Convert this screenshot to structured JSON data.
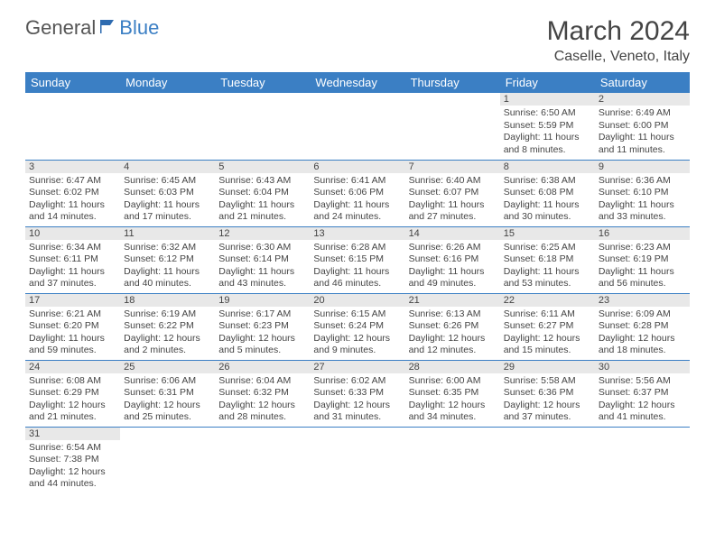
{
  "logo": {
    "general": "General",
    "blue": "Blue"
  },
  "title": "March 2024",
  "location": "Caselle, Veneto, Italy",
  "weekdays": [
    "Sunday",
    "Monday",
    "Tuesday",
    "Wednesday",
    "Thursday",
    "Friday",
    "Saturday"
  ],
  "colors": {
    "header_bg": "#3b7fc4",
    "header_fg": "#ffffff",
    "daynum_bg": "#e8e8e8",
    "row_border": "#3b7fc4",
    "text": "#444444"
  },
  "weeks": [
    [
      null,
      null,
      null,
      null,
      null,
      {
        "n": "1",
        "sr": "Sunrise: 6:50 AM",
        "ss": "Sunset: 5:59 PM",
        "d1": "Daylight: 11 hours",
        "d2": "and 8 minutes."
      },
      {
        "n": "2",
        "sr": "Sunrise: 6:49 AM",
        "ss": "Sunset: 6:00 PM",
        "d1": "Daylight: 11 hours",
        "d2": "and 11 minutes."
      }
    ],
    [
      {
        "n": "3",
        "sr": "Sunrise: 6:47 AM",
        "ss": "Sunset: 6:02 PM",
        "d1": "Daylight: 11 hours",
        "d2": "and 14 minutes."
      },
      {
        "n": "4",
        "sr": "Sunrise: 6:45 AM",
        "ss": "Sunset: 6:03 PM",
        "d1": "Daylight: 11 hours",
        "d2": "and 17 minutes."
      },
      {
        "n": "5",
        "sr": "Sunrise: 6:43 AM",
        "ss": "Sunset: 6:04 PM",
        "d1": "Daylight: 11 hours",
        "d2": "and 21 minutes."
      },
      {
        "n": "6",
        "sr": "Sunrise: 6:41 AM",
        "ss": "Sunset: 6:06 PM",
        "d1": "Daylight: 11 hours",
        "d2": "and 24 minutes."
      },
      {
        "n": "7",
        "sr": "Sunrise: 6:40 AM",
        "ss": "Sunset: 6:07 PM",
        "d1": "Daylight: 11 hours",
        "d2": "and 27 minutes."
      },
      {
        "n": "8",
        "sr": "Sunrise: 6:38 AM",
        "ss": "Sunset: 6:08 PM",
        "d1": "Daylight: 11 hours",
        "d2": "and 30 minutes."
      },
      {
        "n": "9",
        "sr": "Sunrise: 6:36 AM",
        "ss": "Sunset: 6:10 PM",
        "d1": "Daylight: 11 hours",
        "d2": "and 33 minutes."
      }
    ],
    [
      {
        "n": "10",
        "sr": "Sunrise: 6:34 AM",
        "ss": "Sunset: 6:11 PM",
        "d1": "Daylight: 11 hours",
        "d2": "and 37 minutes."
      },
      {
        "n": "11",
        "sr": "Sunrise: 6:32 AM",
        "ss": "Sunset: 6:12 PM",
        "d1": "Daylight: 11 hours",
        "d2": "and 40 minutes."
      },
      {
        "n": "12",
        "sr": "Sunrise: 6:30 AM",
        "ss": "Sunset: 6:14 PM",
        "d1": "Daylight: 11 hours",
        "d2": "and 43 minutes."
      },
      {
        "n": "13",
        "sr": "Sunrise: 6:28 AM",
        "ss": "Sunset: 6:15 PM",
        "d1": "Daylight: 11 hours",
        "d2": "and 46 minutes."
      },
      {
        "n": "14",
        "sr": "Sunrise: 6:26 AM",
        "ss": "Sunset: 6:16 PM",
        "d1": "Daylight: 11 hours",
        "d2": "and 49 minutes."
      },
      {
        "n": "15",
        "sr": "Sunrise: 6:25 AM",
        "ss": "Sunset: 6:18 PM",
        "d1": "Daylight: 11 hours",
        "d2": "and 53 minutes."
      },
      {
        "n": "16",
        "sr": "Sunrise: 6:23 AM",
        "ss": "Sunset: 6:19 PM",
        "d1": "Daylight: 11 hours",
        "d2": "and 56 minutes."
      }
    ],
    [
      {
        "n": "17",
        "sr": "Sunrise: 6:21 AM",
        "ss": "Sunset: 6:20 PM",
        "d1": "Daylight: 11 hours",
        "d2": "and 59 minutes."
      },
      {
        "n": "18",
        "sr": "Sunrise: 6:19 AM",
        "ss": "Sunset: 6:22 PM",
        "d1": "Daylight: 12 hours",
        "d2": "and 2 minutes."
      },
      {
        "n": "19",
        "sr": "Sunrise: 6:17 AM",
        "ss": "Sunset: 6:23 PM",
        "d1": "Daylight: 12 hours",
        "d2": "and 5 minutes."
      },
      {
        "n": "20",
        "sr": "Sunrise: 6:15 AM",
        "ss": "Sunset: 6:24 PM",
        "d1": "Daylight: 12 hours",
        "d2": "and 9 minutes."
      },
      {
        "n": "21",
        "sr": "Sunrise: 6:13 AM",
        "ss": "Sunset: 6:26 PM",
        "d1": "Daylight: 12 hours",
        "d2": "and 12 minutes."
      },
      {
        "n": "22",
        "sr": "Sunrise: 6:11 AM",
        "ss": "Sunset: 6:27 PM",
        "d1": "Daylight: 12 hours",
        "d2": "and 15 minutes."
      },
      {
        "n": "23",
        "sr": "Sunrise: 6:09 AM",
        "ss": "Sunset: 6:28 PM",
        "d1": "Daylight: 12 hours",
        "d2": "and 18 minutes."
      }
    ],
    [
      {
        "n": "24",
        "sr": "Sunrise: 6:08 AM",
        "ss": "Sunset: 6:29 PM",
        "d1": "Daylight: 12 hours",
        "d2": "and 21 minutes."
      },
      {
        "n": "25",
        "sr": "Sunrise: 6:06 AM",
        "ss": "Sunset: 6:31 PM",
        "d1": "Daylight: 12 hours",
        "d2": "and 25 minutes."
      },
      {
        "n": "26",
        "sr": "Sunrise: 6:04 AM",
        "ss": "Sunset: 6:32 PM",
        "d1": "Daylight: 12 hours",
        "d2": "and 28 minutes."
      },
      {
        "n": "27",
        "sr": "Sunrise: 6:02 AM",
        "ss": "Sunset: 6:33 PM",
        "d1": "Daylight: 12 hours",
        "d2": "and 31 minutes."
      },
      {
        "n": "28",
        "sr": "Sunrise: 6:00 AM",
        "ss": "Sunset: 6:35 PM",
        "d1": "Daylight: 12 hours",
        "d2": "and 34 minutes."
      },
      {
        "n": "29",
        "sr": "Sunrise: 5:58 AM",
        "ss": "Sunset: 6:36 PM",
        "d1": "Daylight: 12 hours",
        "d2": "and 37 minutes."
      },
      {
        "n": "30",
        "sr": "Sunrise: 5:56 AM",
        "ss": "Sunset: 6:37 PM",
        "d1": "Daylight: 12 hours",
        "d2": "and 41 minutes."
      }
    ],
    [
      {
        "n": "31",
        "sr": "Sunrise: 6:54 AM",
        "ss": "Sunset: 7:38 PM",
        "d1": "Daylight: 12 hours",
        "d2": "and 44 minutes."
      },
      null,
      null,
      null,
      null,
      null,
      null
    ]
  ]
}
